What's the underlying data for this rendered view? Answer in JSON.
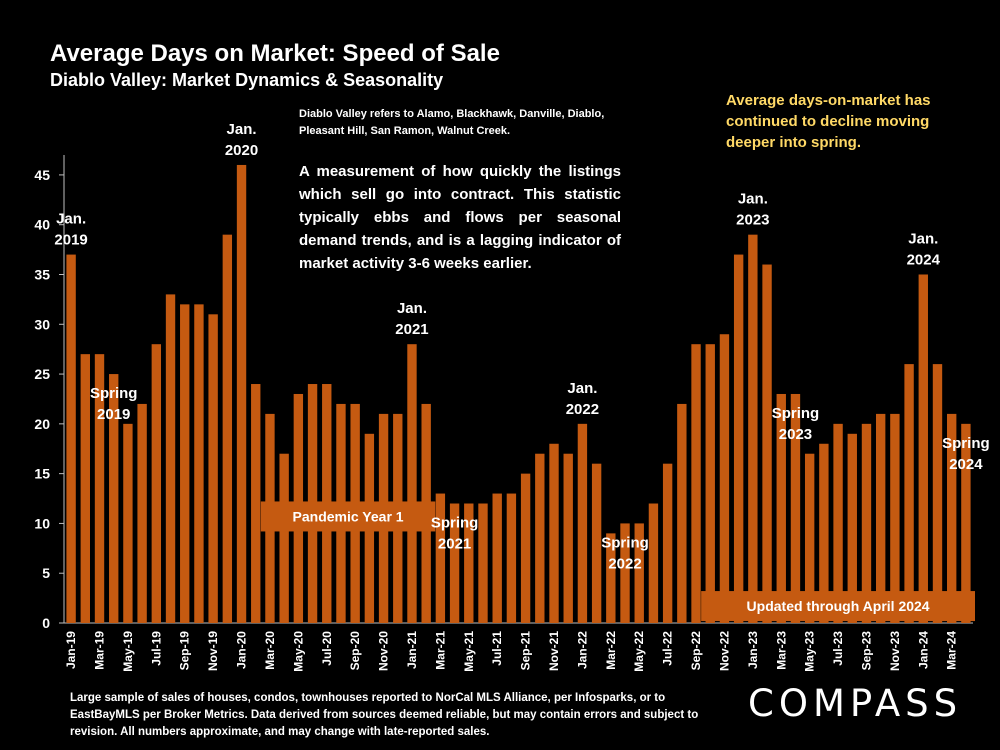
{
  "header": {
    "title": "Average Days on Market:  Speed of Sale",
    "subtitle": "Diablo Valley: Market Dynamics & Seasonality"
  },
  "notes": {
    "area_note": "Diablo Valley refers to Alamo, Blackhawk, Danville, Diablo, Pleasant Hill, San Ramon, Walnut Creek.",
    "description": "A measurement of how quickly the listings which sell go into contract. This statistic typically ebbs and flows per seasonal demand trends, and is a lagging indicator of market activity 3-6 weeks earlier.",
    "highlight": "Average days-on-market has continued to decline moving deeper into spring.",
    "source": "Large sample of sales of houses, condos, townhouses reported to NorCal MLS Alliance, per Infosparks, or to EastBayMLS per Broker Metrics. Data derived from sources deemed reliable, but may contain errors and subject to revision. All numbers approximate, and may change with late-reported sales."
  },
  "logo": "COMPASS",
  "colors": {
    "bar": "#c55a11",
    "background": "#000000",
    "highlight_text": "#ffd966"
  },
  "chart_data": {
    "type": "bar",
    "months": [
      "Jan-19",
      "Feb-19",
      "Mar-19",
      "Apr-19",
      "May-19",
      "Jun-19",
      "Jul-19",
      "Aug-19",
      "Sep-19",
      "Oct-19",
      "Nov-19",
      "Dec-19",
      "Jan-20",
      "Feb-20",
      "Mar-20",
      "Apr-20",
      "May-20",
      "Jun-20",
      "Jul-20",
      "Aug-20",
      "Sep-20",
      "Oct-20",
      "Nov-20",
      "Dec-20",
      "Jan-21",
      "Feb-21",
      "Mar-21",
      "Apr-21",
      "May-21",
      "Jun-21",
      "Jul-21",
      "Aug-21",
      "Sep-21",
      "Oct-21",
      "Nov-21",
      "Dec-21",
      "Jan-22",
      "Feb-22",
      "Mar-22",
      "Apr-22",
      "May-22",
      "Jun-22",
      "Jul-22",
      "Aug-22",
      "Sep-22",
      "Oct-22",
      "Nov-22",
      "Dec-22",
      "Jan-23",
      "Feb-23",
      "Mar-23",
      "Apr-23",
      "May-23",
      "Jun-23",
      "Jul-23",
      "Aug-23",
      "Sep-23",
      "Oct-23",
      "Nov-23",
      "Dec-23",
      "Jan-24",
      "Feb-24",
      "Mar-24",
      "Apr-24"
    ],
    "tick_labels": [
      "Jan-19",
      "",
      "Mar-19",
      "",
      "May-19",
      "",
      "Jul-19",
      "",
      "Sep-19",
      "",
      "Nov-19",
      "",
      "Jan-20",
      "",
      "Mar-20",
      "",
      "May-20",
      "",
      "Jul-20",
      "",
      "Sep-20",
      "",
      "Nov-20",
      "",
      "Jan-21",
      "",
      "Mar-21",
      "",
      "May-21",
      "",
      "Jul-21",
      "",
      "Sep-21",
      "",
      "Nov-21",
      "",
      "Jan-22",
      "",
      "Mar-22",
      "",
      "May-22",
      "",
      "Jul-22",
      "",
      "Sep-22",
      "",
      "Nov-22",
      "",
      "Jan-23",
      "",
      "Mar-23",
      "",
      "May-23",
      "",
      "Jul-23",
      "",
      "Sep-23",
      "",
      "Nov-23",
      "",
      "Jan-24",
      "",
      "Mar-24",
      ""
    ],
    "values": [
      37,
      27,
      27,
      25,
      20,
      22,
      28,
      33,
      32,
      32,
      31,
      39,
      46,
      24,
      21,
      17,
      23,
      24,
      24,
      22,
      22,
      19,
      21,
      21,
      28,
      22,
      13,
      12,
      12,
      12,
      13,
      13,
      15,
      17,
      18,
      17,
      20,
      16,
      9,
      10,
      10,
      12,
      16,
      22,
      28,
      28,
      29,
      37,
      39,
      36,
      23,
      23,
      17,
      18,
      20,
      19,
      20,
      21,
      21,
      26,
      35,
      26,
      21,
      20
    ],
    "ylim": [
      0,
      47
    ],
    "yticks": [
      0,
      5,
      10,
      15,
      20,
      25,
      30,
      35,
      40,
      45
    ],
    "ytick_labels": [
      "0",
      "5",
      "10",
      "15",
      "20",
      "25",
      "30",
      "35",
      "40",
      "45"
    ],
    "annotations": [
      {
        "index": 0,
        "lines": [
          "Jan.",
          "2019"
        ],
        "placement": "above"
      },
      {
        "index": 12,
        "lines": [
          "Jan.",
          "2020"
        ],
        "placement": "above"
      },
      {
        "index": 24,
        "lines": [
          "Jan.",
          "2021"
        ],
        "placement": "above"
      },
      {
        "index": 36,
        "lines": [
          "Jan.",
          "2022"
        ],
        "placement": "above"
      },
      {
        "index": 48,
        "lines": [
          "Jan.",
          "2023"
        ],
        "placement": "above"
      },
      {
        "index": 60,
        "lines": [
          "Jan.",
          "2024"
        ],
        "placement": "above"
      },
      {
        "index": 3,
        "lines": [
          "Spring",
          "2019"
        ],
        "placement": "inside"
      },
      {
        "index": 27,
        "lines": [
          "Spring",
          "2021"
        ],
        "placement": "inside"
      },
      {
        "index": 39,
        "lines": [
          "Spring",
          "2022"
        ],
        "placement": "inside"
      },
      {
        "index": 51,
        "lines": [
          "Spring",
          "2023"
        ],
        "placement": "inside"
      },
      {
        "index": 63,
        "lines": [
          "Spring",
          "2024"
        ],
        "placement": "inside"
      }
    ],
    "callouts": [
      {
        "text": "Pandemic Year 1",
        "from": 14,
        "to": 25,
        "value": 10.7
      },
      {
        "text": "Updated through April 2024",
        "from": 45,
        "to": 63,
        "value": 1.7
      }
    ]
  }
}
